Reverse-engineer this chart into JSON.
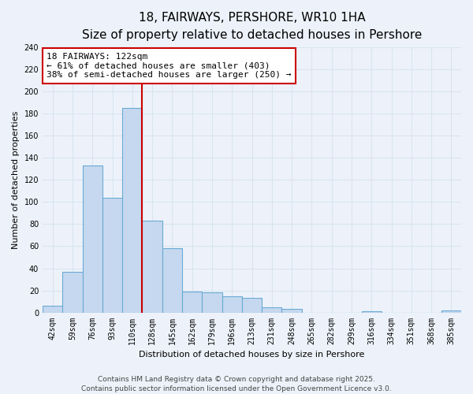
{
  "title": "18, FAIRWAYS, PERSHORE, WR10 1HA",
  "subtitle": "Size of property relative to detached houses in Pershore",
  "xlabel": "Distribution of detached houses by size in Pershore",
  "ylabel": "Number of detached properties",
  "bin_labels": [
    "42sqm",
    "59sqm",
    "76sqm",
    "93sqm",
    "110sqm",
    "128sqm",
    "145sqm",
    "162sqm",
    "179sqm",
    "196sqm",
    "213sqm",
    "231sqm",
    "248sqm",
    "265sqm",
    "282sqm",
    "299sqm",
    "316sqm",
    "334sqm",
    "351sqm",
    "368sqm",
    "385sqm"
  ],
  "bar_values": [
    6,
    37,
    133,
    104,
    185,
    83,
    58,
    19,
    18,
    15,
    13,
    5,
    3,
    0,
    0,
    0,
    1,
    0,
    0,
    0,
    2
  ],
  "bar_color": "#c5d8ef",
  "bar_edge_color": "#6aaad4",
  "vline_color": "#cc0000",
  "annotation_text": "18 FAIRWAYS: 122sqm\n← 61% of detached houses are smaller (403)\n38% of semi-detached houses are larger (250) →",
  "annotation_box_color": "#ffffff",
  "annotation_box_edge": "#cc0000",
  "ylim": [
    0,
    240
  ],
  "yticks": [
    0,
    20,
    40,
    60,
    80,
    100,
    120,
    140,
    160,
    180,
    200,
    220,
    240
  ],
  "footer_line1": "Contains HM Land Registry data © Crown copyright and database right 2025.",
  "footer_line2": "Contains public sector information licensed under the Open Government Licence v3.0.",
  "bg_color": "#edf2fa",
  "grid_color": "#d8e4f0",
  "title_fontsize": 11,
  "subtitle_fontsize": 9,
  "axis_label_fontsize": 8,
  "tick_fontsize": 7,
  "annotation_fontsize": 8,
  "footer_fontsize": 6.5
}
